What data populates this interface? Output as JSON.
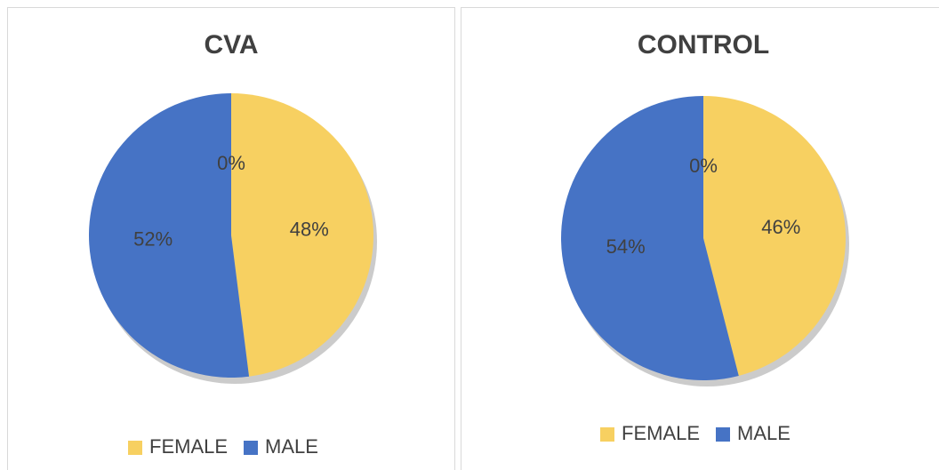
{
  "chart_data": [
    {
      "type": "pie",
      "title": "CVA",
      "categories": [
        "FEMALE",
        "MALE",
        null
      ],
      "values": [
        48,
        52,
        0
      ],
      "value_labels": [
        "48%",
        "52%",
        "0%"
      ],
      "colors": [
        "#f7d061",
        "#4673c5"
      ],
      "legend": "bottom"
    },
    {
      "type": "pie",
      "title": "CONTROL",
      "categories": [
        "FEMALE",
        "MALE",
        null
      ],
      "values": [
        46,
        54,
        0
      ],
      "value_labels": [
        "46%",
        "54%",
        "0%"
      ],
      "colors": [
        "#f7d061",
        "#4673c5"
      ],
      "legend": "bottom"
    }
  ]
}
